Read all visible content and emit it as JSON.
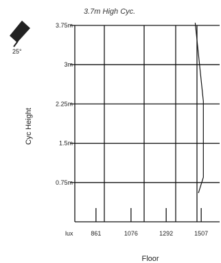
{
  "chart_data": {
    "type": "line",
    "title": "3.7m High Cyc.",
    "xlabel": "Floor",
    "ylabel": "Cyc Height",
    "lux_label": "lux",
    "lamp_angle_label": "25°",
    "y_ticks": [
      "0.75m",
      "1.5m",
      "2.25m",
      "3m",
      "3.75m"
    ],
    "y_tick_values": [
      0.75,
      1.5,
      2.25,
      3,
      3.75
    ],
    "ylim": [
      0,
      3.75
    ],
    "x_ticks": [
      "861",
      "1076",
      "1292",
      "1507"
    ],
    "x_tick_values": [
      861,
      1076,
      1292,
      1507
    ],
    "xlim": [
      731,
      1620
    ],
    "grid": true,
    "series": [
      {
        "points": [
          {
            "x": 1490,
            "y": 0.55
          },
          {
            "x": 1520,
            "y": 0.85
          },
          {
            "x": 1520,
            "y": 2.3
          },
          {
            "x": 1470,
            "y": 3.8
          }
        ]
      }
    ]
  }
}
